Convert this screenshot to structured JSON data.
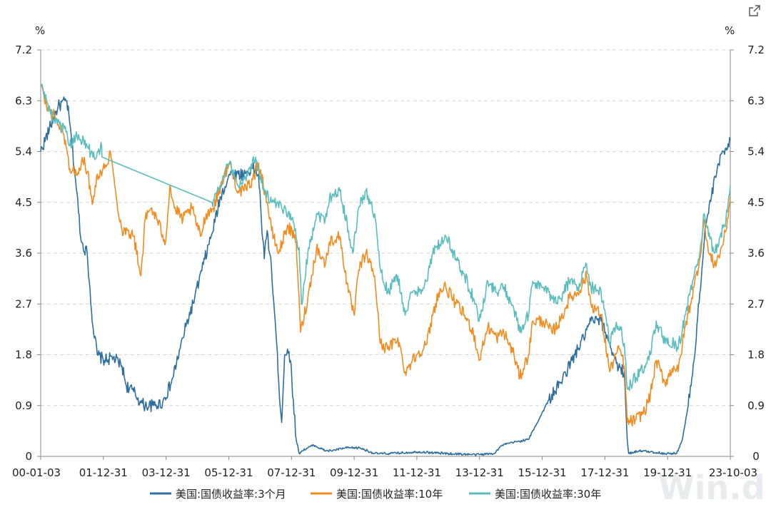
{
  "watermark": "Win.d",
  "icons": {
    "expand": "external-link-icon"
  },
  "chart_data": {
    "type": "line",
    "y_unit_left": "%",
    "y_unit_right": "%",
    "ylim": [
      0,
      7.2
    ],
    "y_ticks": [
      "0",
      "0.9",
      "1.8",
      "2.7",
      "3.6",
      "4.5",
      "5.4",
      "6.3",
      "7.2"
    ],
    "x_ticks": [
      "00-01-03",
      "01-12-31",
      "03-12-31",
      "05-12-31",
      "07-12-31",
      "09-12-31",
      "11-12-31",
      "13-12-31",
      "15-12-31",
      "17-12-31",
      "19-12-31",
      "23-10-03"
    ],
    "grid": "horizontal-dashed",
    "legend_position": "bottom",
    "x_range_years": [
      2000.0,
      2023.75
    ],
    "series": [
      {
        "name": "美国:国债收益率:3个月",
        "color": "#2e6f9e",
        "points": [
          [
            2000.0,
            5.4
          ],
          [
            2000.3,
            5.8
          ],
          [
            2000.6,
            6.2
          ],
          [
            2000.9,
            6.3
          ],
          [
            2001.0,
            5.9
          ],
          [
            2001.2,
            4.9
          ],
          [
            2001.4,
            3.8
          ],
          [
            2001.6,
            3.6
          ],
          [
            2001.8,
            2.3
          ],
          [
            2001.95,
            1.8
          ],
          [
            2002.2,
            1.7
          ],
          [
            2002.5,
            1.75
          ],
          [
            2002.8,
            1.6
          ],
          [
            2002.95,
            1.25
          ],
          [
            2003.2,
            1.15
          ],
          [
            2003.45,
            0.95
          ],
          [
            2003.6,
            0.9
          ],
          [
            2003.9,
            0.9
          ],
          [
            2004.2,
            0.95
          ],
          [
            2004.5,
            1.3
          ],
          [
            2004.8,
            1.9
          ],
          [
            2005.0,
            2.3
          ],
          [
            2005.3,
            2.8
          ],
          [
            2005.6,
            3.4
          ],
          [
            2005.9,
            3.95
          ],
          [
            2006.2,
            4.6
          ],
          [
            2006.5,
            5.0
          ],
          [
            2006.8,
            5.0
          ],
          [
            2007.0,
            5.0
          ],
          [
            2007.3,
            5.1
          ],
          [
            2007.5,
            5.0
          ],
          [
            2007.6,
            4.2
          ],
          [
            2007.7,
            3.5
          ],
          [
            2007.8,
            4.0
          ],
          [
            2007.95,
            3.3
          ],
          [
            2008.1,
            2.2
          ],
          [
            2008.2,
            1.3
          ],
          [
            2008.3,
            0.6
          ],
          [
            2008.4,
            1.8
          ],
          [
            2008.5,
            1.9
          ],
          [
            2008.6,
            1.7
          ],
          [
            2008.7,
            1.0
          ],
          [
            2008.8,
            0.3
          ],
          [
            2008.9,
            0.05
          ],
          [
            2009.0,
            0.1
          ],
          [
            2009.4,
            0.2
          ],
          [
            2009.8,
            0.1
          ],
          [
            2010.0,
            0.1
          ],
          [
            2010.5,
            0.15
          ],
          [
            2011.0,
            0.15
          ],
          [
            2011.5,
            0.05
          ],
          [
            2012.0,
            0.05
          ],
          [
            2013.0,
            0.08
          ],
          [
            2014.0,
            0.05
          ],
          [
            2015.0,
            0.03
          ],
          [
            2015.6,
            0.05
          ],
          [
            2015.9,
            0.2
          ],
          [
            2016.3,
            0.25
          ],
          [
            2016.8,
            0.3
          ],
          [
            2017.0,
            0.5
          ],
          [
            2017.5,
            1.0
          ],
          [
            2017.9,
            1.3
          ],
          [
            2018.3,
            1.7
          ],
          [
            2018.7,
            2.1
          ],
          [
            2018.95,
            2.4
          ],
          [
            2019.3,
            2.4
          ],
          [
            2019.6,
            2.0
          ],
          [
            2019.9,
            1.55
          ],
          [
            2020.1,
            1.5
          ],
          [
            2020.2,
            0.3
          ],
          [
            2020.25,
            0.05
          ],
          [
            2020.6,
            0.1
          ],
          [
            2021.0,
            0.08
          ],
          [
            2021.5,
            0.05
          ],
          [
            2021.9,
            0.05
          ],
          [
            2022.1,
            0.3
          ],
          [
            2022.3,
            0.9
          ],
          [
            2022.5,
            1.7
          ],
          [
            2022.7,
            2.9
          ],
          [
            2022.9,
            4.1
          ],
          [
            2023.1,
            4.6
          ],
          [
            2023.3,
            5.1
          ],
          [
            2023.5,
            5.4
          ],
          [
            2023.75,
            5.6
          ]
        ]
      },
      {
        "name": "美国:国债收益率:10年",
        "color": "#f28c1e",
        "points": [
          [
            2000.0,
            6.6
          ],
          [
            2000.2,
            6.2
          ],
          [
            2000.5,
            6.0
          ],
          [
            2000.8,
            5.7
          ],
          [
            2001.0,
            5.1
          ],
          [
            2001.3,
            5.0
          ],
          [
            2001.5,
            5.3
          ],
          [
            2001.8,
            4.5
          ],
          [
            2001.95,
            5.0
          ],
          [
            2002.2,
            5.1
          ],
          [
            2002.4,
            5.4
          ],
          [
            2002.6,
            4.6
          ],
          [
            2002.8,
            4.0
          ],
          [
            2003.0,
            4.0
          ],
          [
            2003.2,
            3.9
          ],
          [
            2003.45,
            3.2
          ],
          [
            2003.6,
            4.2
          ],
          [
            2003.8,
            4.4
          ],
          [
            2004.0,
            4.2
          ],
          [
            2004.3,
            3.8
          ],
          [
            2004.45,
            4.8
          ],
          [
            2004.6,
            4.4
          ],
          [
            2004.9,
            4.2
          ],
          [
            2005.2,
            4.4
          ],
          [
            2005.5,
            3.9
          ],
          [
            2005.7,
            4.3
          ],
          [
            2005.95,
            4.4
          ],
          [
            2006.2,
            4.8
          ],
          [
            2006.5,
            5.2
          ],
          [
            2006.8,
            4.7
          ],
          [
            2007.0,
            4.7
          ],
          [
            2007.3,
            4.9
          ],
          [
            2007.5,
            5.2
          ],
          [
            2007.8,
            4.5
          ],
          [
            2007.95,
            4.0
          ],
          [
            2008.2,
            3.6
          ],
          [
            2008.5,
            4.1
          ],
          [
            2008.8,
            3.8
          ],
          [
            2008.95,
            2.2
          ],
          [
            2009.2,
            2.8
          ],
          [
            2009.5,
            3.7
          ],
          [
            2009.8,
            3.4
          ],
          [
            2009.95,
            3.8
          ],
          [
            2010.3,
            3.9
          ],
          [
            2010.6,
            2.9
          ],
          [
            2010.8,
            2.5
          ],
          [
            2010.95,
            3.3
          ],
          [
            2011.2,
            3.6
          ],
          [
            2011.5,
            3.2
          ],
          [
            2011.7,
            2.0
          ],
          [
            2011.95,
            1.9
          ],
          [
            2012.3,
            2.1
          ],
          [
            2012.55,
            1.5
          ],
          [
            2012.8,
            1.7
          ],
          [
            2012.95,
            1.8
          ],
          [
            2013.3,
            2.0
          ],
          [
            2013.5,
            2.5
          ],
          [
            2013.7,
            2.9
          ],
          [
            2013.95,
            3.0
          ],
          [
            2014.3,
            2.7
          ],
          [
            2014.6,
            2.5
          ],
          [
            2014.9,
            2.2
          ],
          [
            2015.1,
            1.7
          ],
          [
            2015.4,
            2.3
          ],
          [
            2015.7,
            2.1
          ],
          [
            2015.95,
            2.2
          ],
          [
            2016.3,
            1.8
          ],
          [
            2016.5,
            1.4
          ],
          [
            2016.8,
            1.8
          ],
          [
            2016.95,
            2.4
          ],
          [
            2017.3,
            2.4
          ],
          [
            2017.6,
            2.2
          ],
          [
            2017.9,
            2.4
          ],
          [
            2018.2,
            2.8
          ],
          [
            2018.5,
            2.9
          ],
          [
            2018.8,
            3.2
          ],
          [
            2018.95,
            2.7
          ],
          [
            2019.3,
            2.5
          ],
          [
            2019.6,
            1.5
          ],
          [
            2019.8,
            1.8
          ],
          [
            2019.95,
            1.9
          ],
          [
            2020.1,
            1.6
          ],
          [
            2020.2,
            0.6
          ],
          [
            2020.5,
            0.65
          ],
          [
            2020.8,
            0.8
          ],
          [
            2021.0,
            1.1
          ],
          [
            2021.2,
            1.7
          ],
          [
            2021.5,
            1.3
          ],
          [
            2021.8,
            1.6
          ],
          [
            2021.95,
            1.5
          ],
          [
            2022.2,
            2.3
          ],
          [
            2022.5,
            3.0
          ],
          [
            2022.7,
            3.5
          ],
          [
            2022.85,
            4.2
          ],
          [
            2023.0,
            3.6
          ],
          [
            2023.2,
            3.4
          ],
          [
            2023.4,
            3.6
          ],
          [
            2023.6,
            4.0
          ],
          [
            2023.75,
            4.6
          ]
        ]
      },
      {
        "name": "美国:国债收益率:30年",
        "color": "#5bbdbd",
        "points": [
          [
            2000.0,
            6.6
          ],
          [
            2000.2,
            6.3
          ],
          [
            2000.5,
            5.9
          ],
          [
            2000.8,
            5.8
          ],
          [
            2001.0,
            5.5
          ],
          [
            2001.3,
            5.7
          ],
          [
            2001.6,
            5.5
          ],
          [
            2001.8,
            5.3
          ],
          [
            2001.95,
            5.4
          ],
          [
            2002.1,
            5.5
          ],
          [
            2002.12,
            5.3
          ],
          [
            2005.9,
            4.5
          ],
          [
            2006.2,
            4.8
          ],
          [
            2006.5,
            5.2
          ],
          [
            2006.8,
            4.8
          ],
          [
            2007.0,
            4.9
          ],
          [
            2007.4,
            5.3
          ],
          [
            2007.7,
            4.7
          ],
          [
            2007.95,
            4.5
          ],
          [
            2008.3,
            4.4
          ],
          [
            2008.6,
            4.3
          ],
          [
            2008.9,
            3.7
          ],
          [
            2008.98,
            2.7
          ],
          [
            2009.2,
            3.6
          ],
          [
            2009.5,
            4.3
          ],
          [
            2009.8,
            4.2
          ],
          [
            2009.95,
            4.6
          ],
          [
            2010.3,
            4.7
          ],
          [
            2010.6,
            4.0
          ],
          [
            2010.75,
            3.6
          ],
          [
            2010.95,
            4.4
          ],
          [
            2011.2,
            4.7
          ],
          [
            2011.5,
            4.3
          ],
          [
            2011.7,
            3.3
          ],
          [
            2011.95,
            2.9
          ],
          [
            2012.3,
            3.2
          ],
          [
            2012.55,
            2.5
          ],
          [
            2012.8,
            2.9
          ],
          [
            2012.95,
            2.9
          ],
          [
            2013.3,
            3.1
          ],
          [
            2013.5,
            3.6
          ],
          [
            2013.8,
            3.8
          ],
          [
            2013.95,
            3.9
          ],
          [
            2014.3,
            3.5
          ],
          [
            2014.6,
            3.2
          ],
          [
            2014.9,
            2.8
          ],
          [
            2015.1,
            2.4
          ],
          [
            2015.4,
            3.1
          ],
          [
            2015.7,
            2.9
          ],
          [
            2015.95,
            3.0
          ],
          [
            2016.3,
            2.6
          ],
          [
            2016.5,
            2.2
          ],
          [
            2016.8,
            2.5
          ],
          [
            2016.95,
            3.1
          ],
          [
            2017.3,
            3.0
          ],
          [
            2017.6,
            2.8
          ],
          [
            2017.9,
            2.8
          ],
          [
            2018.2,
            3.1
          ],
          [
            2018.5,
            3.0
          ],
          [
            2018.8,
            3.4
          ],
          [
            2018.95,
            3.0
          ],
          [
            2019.3,
            2.9
          ],
          [
            2019.6,
            2.0
          ],
          [
            2019.8,
            2.3
          ],
          [
            2019.95,
            2.3
          ],
          [
            2020.1,
            2.0
          ],
          [
            2020.2,
            1.2
          ],
          [
            2020.5,
            1.4
          ],
          [
            2020.8,
            1.6
          ],
          [
            2021.0,
            1.8
          ],
          [
            2021.2,
            2.4
          ],
          [
            2021.5,
            2.0
          ],
          [
            2021.8,
            2.0
          ],
          [
            2021.95,
            1.9
          ],
          [
            2022.2,
            2.5
          ],
          [
            2022.5,
            3.2
          ],
          [
            2022.7,
            3.6
          ],
          [
            2022.85,
            4.3
          ],
          [
            2023.0,
            3.9
          ],
          [
            2023.2,
            3.6
          ],
          [
            2023.4,
            3.9
          ],
          [
            2023.6,
            4.2
          ],
          [
            2023.75,
            4.8
          ]
        ]
      }
    ]
  }
}
